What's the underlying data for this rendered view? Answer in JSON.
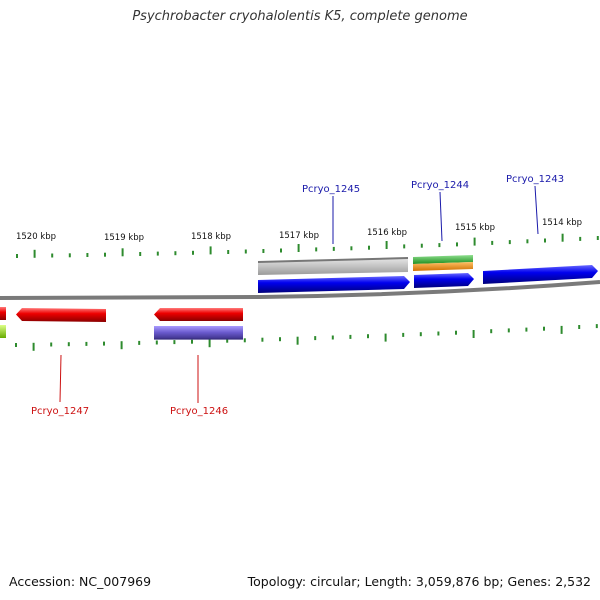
{
  "title": "Psychrobacter cryohalolentis K5, complete genome",
  "footer": {
    "accession": "Accession: NC_007969",
    "summary": "Topology: circular; Length: 3,059,876 bp; Genes: 2,532"
  },
  "scale_labels": [
    {
      "text": "1520 kbp"
    },
    {
      "text": "1519 kbp"
    },
    {
      "text": "1518 kbp"
    },
    {
      "text": "1517 kbp"
    },
    {
      "text": "1516 kbp"
    },
    {
      "text": "1515 kbp"
    },
    {
      "text": "1514 kbp"
    }
  ],
  "gene_labels": [
    {
      "text": "Pcryo_1245",
      "color": "#1a1aaa",
      "strand": "forward"
    },
    {
      "text": "Pcryo_1244",
      "color": "#1a1aaa",
      "strand": "forward"
    },
    {
      "text": "Pcryo_1243",
      "color": "#1a1aaa",
      "strand": "forward"
    },
    {
      "text": "Pcryo_1247",
      "color": "#cc1111",
      "strand": "reverse"
    },
    {
      "text": "Pcryo_1246",
      "color": "#cc1111",
      "strand": "reverse"
    }
  ],
  "colors": {
    "backbone": "#7a7a7a",
    "tick": "#2e8b2e",
    "forward_cds": "#0000ee",
    "reverse_cds": "#ee0000",
    "gray_feature": "#bdbdbd",
    "green_feature": "#3cb83c",
    "orange_feature": "#f0900c",
    "purple_feature": "#6a5acd",
    "lime_feature": "#99dd33"
  }
}
